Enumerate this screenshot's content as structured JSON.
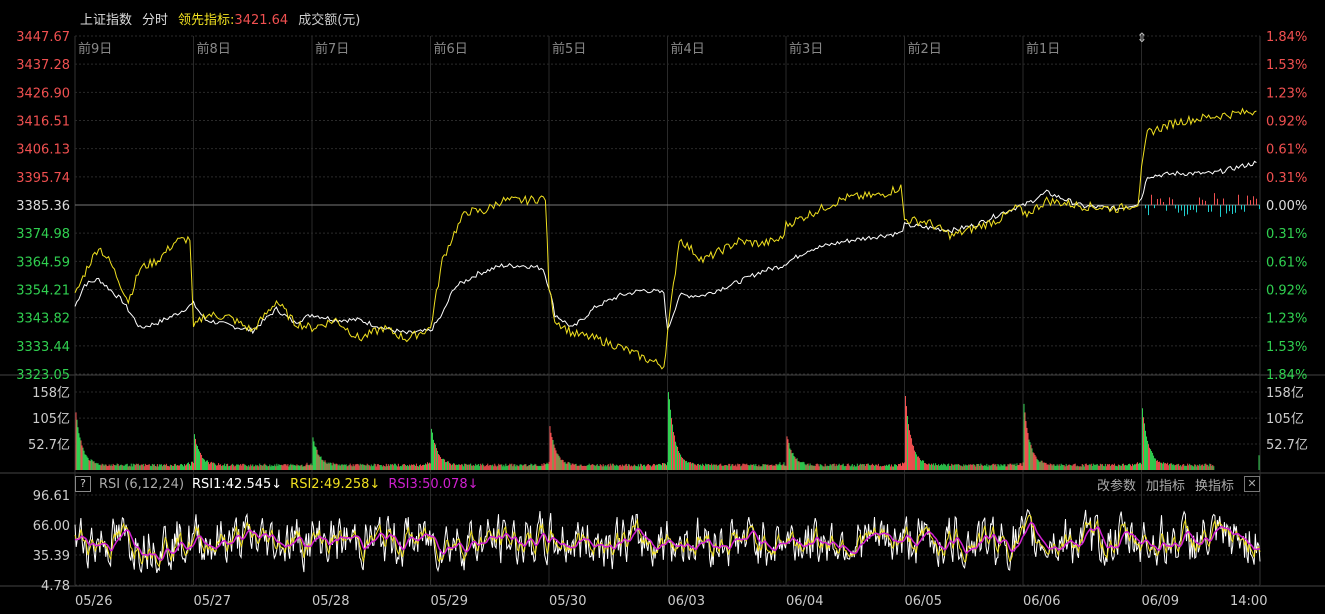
{
  "header": {
    "index_name": "上证指数",
    "mode": "分时",
    "leading_label": "领先指标:",
    "leading_value": "3421.64",
    "volume_label": "成交额(元)"
  },
  "rsi_bar": {
    "help": "?",
    "name": "RSI (6,12,24)",
    "rsi1": "RSI1:42.545↓",
    "rsi2": "RSI2:49.258↓",
    "rsi3": "RSI3:50.078↓",
    "tool1": "改参数",
    "tool2": "加指标",
    "tool3": "换指标",
    "close": "✕"
  },
  "colors": {
    "up": "#f05050",
    "down": "#30d050",
    "white_line": "#ffffff",
    "yellow_line": "#f0e020",
    "rsi3": "#d020d0",
    "cyan": "#20d0d0",
    "grid": "#2a2a2a"
  },
  "chart_data": [
    {
      "type": "line",
      "panel": "price",
      "ylabels_left": [
        "3447.67",
        "3437.28",
        "3426.90",
        "3416.51",
        "3406.13",
        "3395.74",
        "3385.36",
        "3374.98",
        "3364.59",
        "3354.21",
        "3343.82",
        "3333.44",
        "3323.05"
      ],
      "ylabels_right": [
        "1.84%",
        "1.53%",
        "1.23%",
        "0.92%",
        "0.61%",
        "0.31%",
        "0.00%",
        "0.31%",
        "0.61%",
        "0.92%",
        "1.23%",
        "1.53%",
        "1.84%"
      ],
      "ylim": [
        3323.05,
        3447.67
      ],
      "prev_close": 3385.36,
      "day_labels": [
        "前9日",
        "前8日",
        "前7日",
        "前6日",
        "前5日",
        "前4日",
        "前3日",
        "前2日",
        "前1日"
      ],
      "series": [
        {
          "name": "上证指数",
          "color": "#ffffff",
          "x": [
            0,
            0.08,
            0.2,
            0.4,
            0.55,
            0.7,
            0.85,
            1,
            1.1,
            1.3,
            1.5,
            1.7,
            1.85,
            2,
            2.2,
            2.4,
            2.6,
            2.8,
            3,
            3.1,
            3.2,
            3.4,
            3.6,
            3.8,
            3.95,
            4,
            4.05,
            4.2,
            4.4,
            4.6,
            4.8,
            4.97,
            5,
            5.1,
            5.3,
            5.6,
            5.8,
            5.97,
            6,
            6.2,
            6.5,
            6.8,
            6.97,
            7,
            7.2,
            7.4,
            7.6,
            7.8,
            7.97,
            8,
            8.2,
            8.5,
            8.8,
            8.97,
            9,
            9.05,
            9.3,
            9.6,
            9.97
          ],
          "y": [
            3348,
            3356,
            3358,
            3350,
            3340,
            3342,
            3345,
            3349,
            3343,
            3341,
            3339,
            3347,
            3342,
            3345,
            3343,
            3343,
            3340,
            3338,
            3339,
            3345,
            3355,
            3360,
            3363,
            3363,
            3362,
            3355,
            3345,
            3340,
            3348,
            3352,
            3354,
            3353,
            3339,
            3352,
            3352,
            3357,
            3361,
            3363,
            3364,
            3369,
            3372,
            3374,
            3375,
            3378,
            3377,
            3376,
            3378,
            3382,
            3385,
            3385,
            3390,
            3385,
            3384,
            3386,
            3388,
            3396,
            3397,
            3397,
            3401
          ]
        },
        {
          "name": "领先指标",
          "color": "#f0e020",
          "x": [
            0,
            0.1,
            0.2,
            0.3,
            0.45,
            0.55,
            0.7,
            0.85,
            0.97,
            1,
            1.1,
            1.3,
            1.5,
            1.7,
            1.85,
            2,
            2.2,
            2.4,
            2.6,
            2.8,
            3,
            3.1,
            3.2,
            3.3,
            3.45,
            3.6,
            3.8,
            3.97,
            4,
            4.05,
            4.2,
            4.4,
            4.6,
            4.8,
            4.97,
            5,
            5.1,
            5.3,
            5.6,
            5.8,
            5.97,
            6,
            6.2,
            6.5,
            6.8,
            6.97,
            7,
            7.2,
            7.4,
            7.6,
            7.8,
            7.97,
            8,
            8.2,
            8.5,
            8.8,
            8.97,
            9,
            9.05,
            9.3,
            9.6,
            9.97
          ],
          "y": [
            3352,
            3362,
            3370,
            3364,
            3350,
            3362,
            3365,
            3372,
            3373,
            3340,
            3345,
            3344,
            3339,
            3350,
            3342,
            3340,
            3343,
            3336,
            3340,
            3336,
            3340,
            3365,
            3375,
            3383,
            3383,
            3387,
            3387,
            3388,
            3355,
            3343,
            3338,
            3336,
            3333,
            3329,
            3326,
            3338,
            3373,
            3365,
            3372,
            3371,
            3373,
            3378,
            3382,
            3388,
            3389,
            3392,
            3380,
            3379,
            3374,
            3377,
            3380,
            3385,
            3381,
            3387,
            3385,
            3384,
            3386,
            3398,
            3412,
            3416,
            3418,
            3420
          ]
        }
      ]
    },
    {
      "type": "bar",
      "panel": "volume",
      "ylabels": [
        "158亿",
        "105亿",
        "52.7亿"
      ],
      "ylim": [
        0,
        158
      ],
      "unit": "亿",
      "days": 10,
      "open_peaks": [
        108,
        60,
        55,
        75,
        80,
        160,
        60,
        140,
        125,
        115
      ]
    },
    {
      "type": "line",
      "panel": "rsi",
      "ylabels": [
        "96.61",
        "66.00",
        "35.39",
        "4.78"
      ],
      "ylim": [
        4.78,
        96.61
      ],
      "date_labels": [
        "05/26",
        "05/27",
        "05/28",
        "05/29",
        "05/30",
        "06/03",
        "06/04",
        "06/05",
        "06/06",
        "06/09",
        "14:00"
      ],
      "series": [
        {
          "name": "RSI1",
          "color": "#ffffff"
        },
        {
          "name": "RSI2",
          "color": "#f0e020"
        },
        {
          "name": "RSI3",
          "color": "#d020d0"
        }
      ],
      "mean": 50
    }
  ]
}
